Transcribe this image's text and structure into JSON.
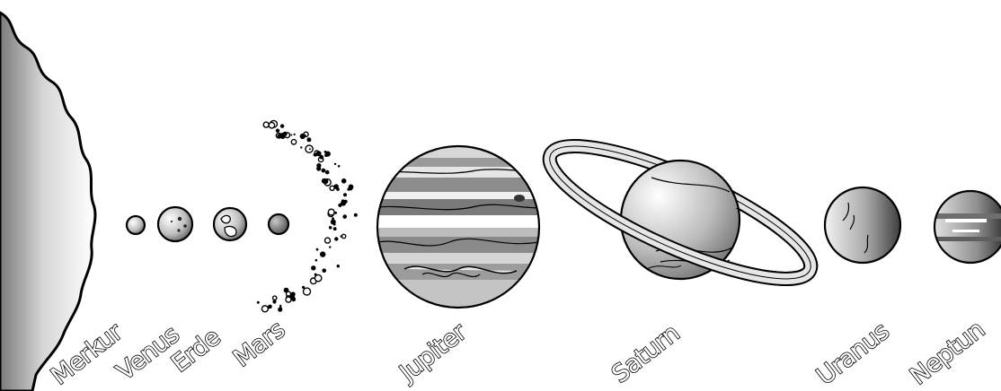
{
  "labels": {
    "mercury": "Merkur",
    "venus": "Venus",
    "earth": "Erde",
    "mars": "Mars",
    "jupiter": "Jupiter",
    "saturn": "Saturn",
    "uranus": "Uranus",
    "neptune": "Neptun"
  },
  "colors": {
    "outline": "#000000",
    "background": "#ffffff",
    "band_dark": "#777777",
    "band_light": "#d9d9d9"
  }
}
